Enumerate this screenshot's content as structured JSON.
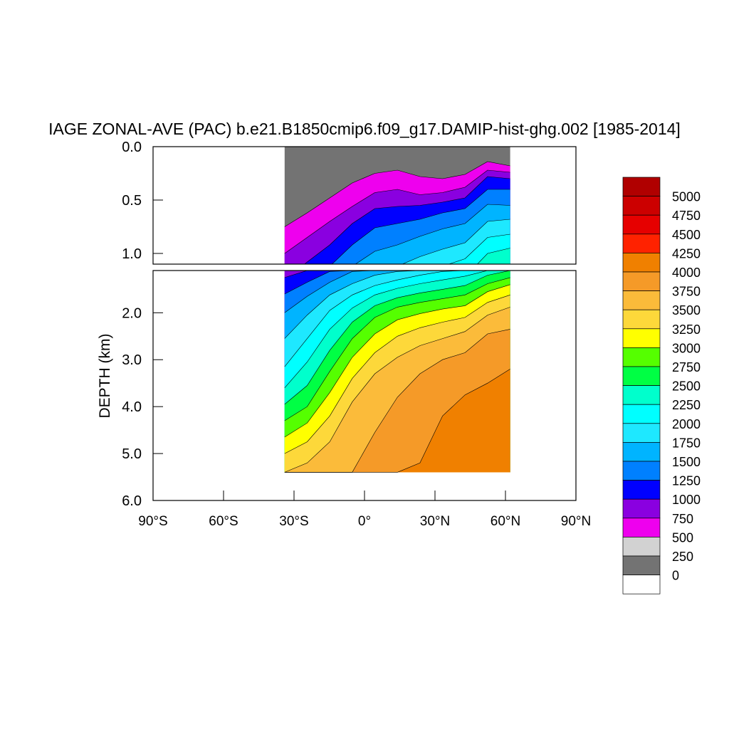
{
  "chart_data": {
    "type": "heatmap",
    "title": "IAGE ZONAL-AVE (PAC) b.e21.B1850cmip6.f09_g17.DAMIP-hist-ghg.002 [1985-2014]",
    "xlabel": "",
    "ylabel": "DEPTH (km)",
    "xlim": [
      -90,
      90
    ],
    "ylim": [
      0,
      6
    ],
    "x_ticks": [
      "90°S",
      "60°S",
      "30°S",
      "0°",
      "30°N",
      "60°N",
      "90°N"
    ],
    "y_ticks_upper": [
      "0.0",
      "0.5",
      "1.0"
    ],
    "y_ticks_lower": [
      "2.0",
      "3.0",
      "4.0",
      "5.0",
      "6.0"
    ],
    "upper_panel_depth_range_km": [
      0,
      1.1
    ],
    "lower_panel_depth_range_km": [
      1.1,
      6.0
    ],
    "data_extent": {
      "lat_min": -34,
      "lat_max": 62,
      "max_depth_km": 5.4
    },
    "colorbar": {
      "levels": [
        "5000",
        "4750",
        "4500",
        "4250",
        "4000",
        "3750",
        "3500",
        "3250",
        "3000",
        "2750",
        "2500",
        "2250",
        "2000",
        "1750",
        "1500",
        "1250",
        "1000",
        "750",
        "500",
        "250",
        "0"
      ],
      "colors": [
        "#b00000",
        "#cc0000",
        "#e60000",
        "#ff2200",
        "#f08000",
        "#f59a28",
        "#fbbb3a",
        "#fdd83a",
        "#ffff00",
        "#55ff00",
        "#00ff44",
        "#00ffcc",
        "#00ffff",
        "#1ee8ff",
        "#00b4ff",
        "#0080ff",
        "#0000ff",
        "#8a00e0",
        "#ee00ee",
        "#d2d2d2",
        "#737373",
        "#ffffff"
      ]
    },
    "depth_contours_km": [
      {
        "level": 250,
        "values": [
          0.75,
          0.62,
          0.48,
          0.34,
          0.25,
          0.22,
          0.28,
          0.3,
          0.26,
          0.14,
          0.18
        ]
      },
      {
        "level": 500,
        "values": [
          1.0,
          0.85,
          0.7,
          0.56,
          0.43,
          0.4,
          0.45,
          0.43,
          0.38,
          0.22,
          0.24
        ]
      },
      {
        "level": 750,
        "values": [
          1.25,
          1.08,
          0.92,
          0.72,
          0.58,
          0.56,
          0.55,
          0.52,
          0.48,
          0.28,
          0.3
        ]
      },
      {
        "level": 1000,
        "values": [
          1.6,
          1.35,
          1.12,
          0.92,
          0.76,
          0.72,
          0.68,
          0.62,
          0.58,
          0.4,
          0.4
        ]
      },
      {
        "level": 1250,
        "values": [
          2.0,
          1.65,
          1.35,
          1.12,
          0.98,
          0.92,
          0.84,
          0.77,
          0.72,
          0.54,
          0.55
        ]
      },
      {
        "level": 1500,
        "values": [
          2.55,
          2.05,
          1.62,
          1.38,
          1.2,
          1.12,
          1.03,
          0.96,
          0.9,
          0.7,
          0.68
        ]
      },
      {
        "level": 1750,
        "values": [
          3.15,
          2.55,
          1.95,
          1.62,
          1.42,
          1.3,
          1.2,
          1.12,
          1.05,
          0.85,
          0.82
        ]
      },
      {
        "level": 2000,
        "values": [
          3.6,
          3.05,
          2.35,
          1.9,
          1.62,
          1.48,
          1.38,
          1.3,
          1.22,
          1.0,
          0.95
        ]
      },
      {
        "level": 2250,
        "values": [
          3.95,
          3.55,
          2.8,
          2.2,
          1.85,
          1.68,
          1.58,
          1.5,
          1.42,
          1.2,
          1.1
        ]
      },
      {
        "level": 2500,
        "values": [
          4.3,
          4.0,
          3.25,
          2.55,
          2.1,
          1.88,
          1.78,
          1.7,
          1.62,
          1.38,
          1.25
        ]
      },
      {
        "level": 2750,
        "values": [
          4.65,
          4.35,
          3.7,
          2.95,
          2.45,
          2.15,
          2.02,
          1.92,
          1.85,
          1.55,
          1.4
        ]
      },
      {
        "level": 3000,
        "values": [
          5.0,
          4.75,
          4.2,
          3.4,
          2.85,
          2.5,
          2.32,
          2.2,
          2.1,
          1.78,
          1.62
        ]
      },
      {
        "level": 3250,
        "values": [
          5.4,
          5.2,
          4.75,
          3.9,
          3.3,
          2.95,
          2.7,
          2.55,
          2.4,
          2.05,
          1.88
        ]
      },
      {
        "level": 3500,
        "values": [
          5.4,
          5.4,
          5.4,
          5.4,
          4.55,
          3.8,
          3.3,
          3.0,
          2.85,
          2.45,
          2.35
        ]
      },
      {
        "level": 3750,
        "values": [
          5.4,
          5.4,
          5.4,
          5.4,
          5.4,
          5.4,
          5.2,
          4.2,
          3.75,
          3.5,
          3.2
        ]
      }
    ]
  }
}
